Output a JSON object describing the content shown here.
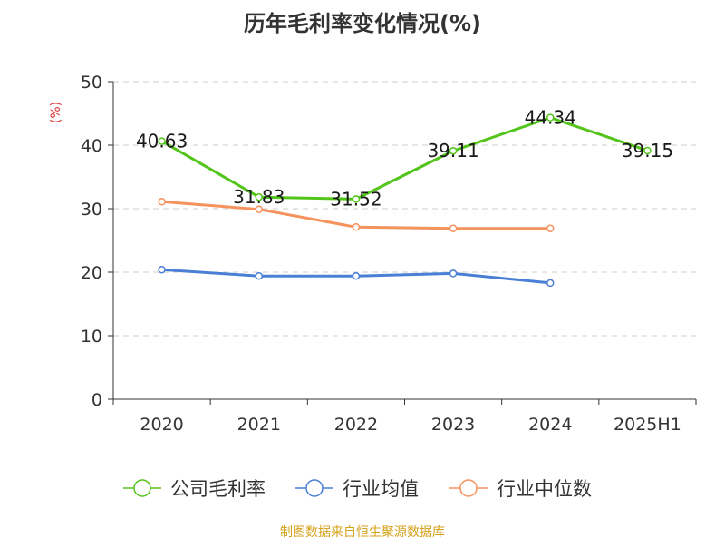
{
  "chart_data": {
    "type": "line",
    "title": "历年毛利率变化情况(%)",
    "ylabel": "(%)",
    "xlabel": "",
    "categories": [
      "2020",
      "2021",
      "2022",
      "2023",
      "2024",
      "2025H1"
    ],
    "ylim": [
      0,
      50
    ],
    "yticks": [
      0,
      10,
      20,
      30,
      40,
      50
    ],
    "grid": true,
    "legend_position": "bottom",
    "series": [
      {
        "name": "公司毛利率",
        "color": "#52c41a",
        "values": [
          40.63,
          31.83,
          31.52,
          39.11,
          44.34,
          39.15
        ],
        "labels": [
          "40.63",
          "31.83",
          "31.52",
          "39.11",
          "44.34",
          "39.15"
        ]
      },
      {
        "name": "行业均值",
        "color": "#4a7fd6",
        "values": [
          20.4,
          19.4,
          19.4,
          19.8,
          18.3,
          null
        ]
      },
      {
        "name": "行业中位数",
        "color": "#f5925e",
        "values": [
          31.1,
          29.9,
          27.1,
          26.9,
          26.9,
          null
        ]
      }
    ]
  },
  "footer": {
    "source": "制图数据来自恒生聚源数据库"
  },
  "colors": {
    "axis": "#333333",
    "grid": "#cccccc",
    "ylabel": "#e03030",
    "source": "#d4a017"
  }
}
